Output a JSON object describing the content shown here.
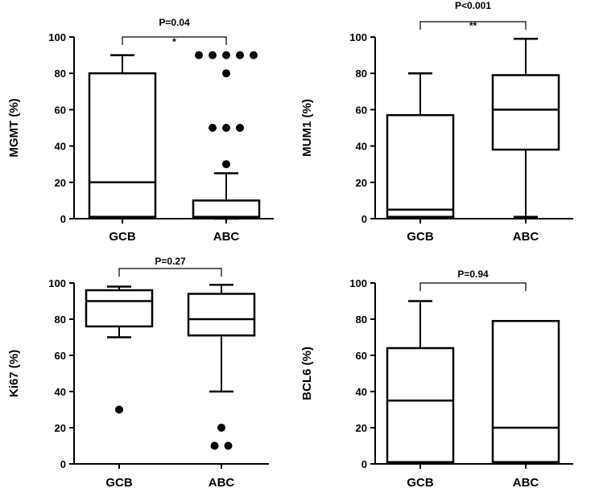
{
  "colors": {
    "ink": "#000000",
    "background": "#ffffff"
  },
  "chart_data": [
    {
      "type": "boxplot",
      "ylabel": "MGMT (%)",
      "ylim": [
        0,
        100
      ],
      "yticks": [
        0,
        20,
        40,
        60,
        80,
        100
      ],
      "categories": [
        "GCB",
        "ABC"
      ],
      "boxes": [
        {
          "category": "GCB",
          "min": 1,
          "q1": 1,
          "median": 20,
          "q3": 80,
          "max": 90,
          "outliers": []
        },
        {
          "category": "ABC",
          "min": 0,
          "q1": 1,
          "median": 1,
          "q3": 10,
          "max": 25,
          "outliers": [
            30,
            50,
            50,
            50,
            80,
            90,
            90,
            90,
            90,
            90
          ]
        }
      ],
      "annotation": {
        "p_text": "P=0.04",
        "stars": "*"
      }
    },
    {
      "type": "boxplot",
      "ylabel": "MUM1 (%)",
      "ylim": [
        0,
        100
      ],
      "yticks": [
        0,
        20,
        40,
        60,
        80,
        100
      ],
      "categories": [
        "GCB",
        "ABC"
      ],
      "boxes": [
        {
          "category": "GCB",
          "min": 1,
          "q1": 1,
          "median": 5,
          "q3": 57,
          "max": 80,
          "outliers": []
        },
        {
          "category": "ABC",
          "min": 1,
          "q1": 38,
          "median": 60,
          "q3": 79,
          "max": 99,
          "outliers": []
        }
      ],
      "annotation": {
        "p_text": "P<0.001",
        "stars": "**"
      }
    },
    {
      "type": "boxplot",
      "ylabel": "Ki67 (%)",
      "ylim": [
        0,
        100
      ],
      "yticks": [
        0,
        20,
        40,
        60,
        80,
        100
      ],
      "categories": [
        "GCB",
        "ABC"
      ],
      "boxes": [
        {
          "category": "GCB",
          "min": 70,
          "q1": 76,
          "median": 90,
          "q3": 96,
          "max": 98,
          "outliers": [
            30
          ]
        },
        {
          "category": "ABC",
          "min": 40,
          "q1": 71,
          "median": 80,
          "q3": 94,
          "max": 99,
          "outliers": [
            10,
            10,
            20
          ]
        }
      ],
      "annotation": {
        "p_text": "P=0.27",
        "stars": ""
      }
    },
    {
      "type": "boxplot",
      "ylabel": "BCL6 (%)",
      "ylim": [
        0,
        100
      ],
      "yticks": [
        0,
        20,
        40,
        60,
        80,
        100
      ],
      "categories": [
        "GCB",
        "ABC"
      ],
      "boxes": [
        {
          "category": "GCB",
          "min": 1,
          "q1": 1,
          "median": 35,
          "q3": 64,
          "max": 90,
          "outliers": []
        },
        {
          "category": "ABC",
          "min": 1,
          "q1": 1,
          "median": 20,
          "q3": 79,
          "max": 79,
          "outliers": []
        }
      ],
      "annotation": {
        "p_text": "P=0.94",
        "stars": ""
      }
    }
  ]
}
